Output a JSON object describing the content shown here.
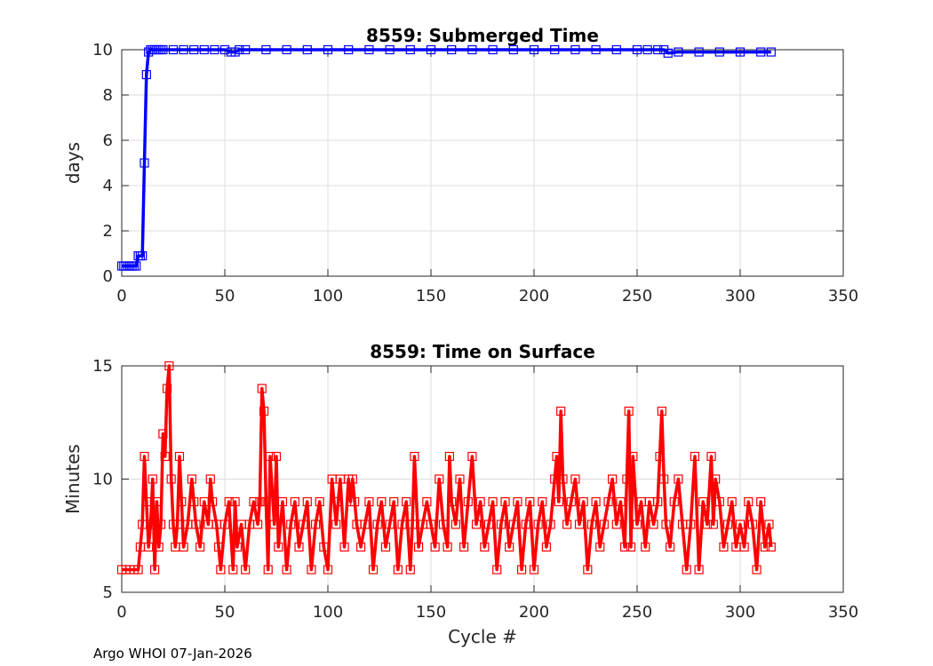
{
  "footer": "Argo WHOI 07-Jan-2026",
  "chart_data": [
    {
      "type": "line",
      "title": "8559: Submerged Time",
      "xlabel": "",
      "ylabel": "days",
      "xlim": [
        0,
        350
      ],
      "ylim": [
        0,
        10
      ],
      "xticks": [
        0,
        50,
        100,
        150,
        200,
        250,
        300,
        350
      ],
      "yticks": [
        0,
        2,
        4,
        6,
        8,
        10
      ],
      "grid": true,
      "marker": "square",
      "color": "#0000ff",
      "series": [
        {
          "name": "Submerged Time",
          "x": [
            0,
            1,
            2,
            3,
            4,
            5,
            6,
            7,
            8,
            9,
            10,
            11,
            12,
            13,
            14,
            15,
            16,
            17,
            18,
            19,
            20,
            25,
            30,
            35,
            40,
            45,
            50,
            53,
            55,
            57,
            60,
            70,
            80,
            90,
            100,
            110,
            120,
            130,
            140,
            150,
            160,
            170,
            180,
            190,
            200,
            210,
            220,
            230,
            240,
            250,
            255,
            260,
            263,
            265,
            270,
            280,
            290,
            300,
            310,
            315
          ],
          "y": [
            0.45,
            0.45,
            0.45,
            0.45,
            0.45,
            0.45,
            0.45,
            0.45,
            0.9,
            0.9,
            0.9,
            5.0,
            8.9,
            9.9,
            10,
            10,
            10,
            10,
            10,
            10,
            10,
            10,
            10,
            10,
            10,
            10,
            10,
            9.9,
            9.9,
            10,
            10,
            10,
            10,
            10,
            10,
            10,
            10,
            10,
            10,
            10,
            10,
            10,
            10,
            10,
            10,
            10,
            10,
            10,
            10,
            10,
            10,
            10,
            10,
            9.85,
            9.9,
            9.9,
            9.9,
            9.9,
            9.9,
            9.9
          ]
        }
      ]
    },
    {
      "type": "line",
      "title": "8559: Time on Surface",
      "xlabel": "Cycle #",
      "ylabel": "Minutes",
      "xlim": [
        0,
        350
      ],
      "ylim": [
        5,
        15
      ],
      "xticks": [
        0,
        50,
        100,
        150,
        200,
        250,
        300,
        350
      ],
      "yticks": [
        5,
        10,
        15
      ],
      "grid": true,
      "marker": "square",
      "color": "#ff0000",
      "series": [
        {
          "name": "Time on Surface",
          "x": [
            0,
            2,
            4,
            6,
            8,
            9,
            10,
            11,
            12,
            13,
            14,
            15,
            16,
            17,
            18,
            19,
            20,
            21,
            22,
            23,
            24,
            25,
            26,
            27,
            28,
            29,
            30,
            32,
            34,
            35,
            36,
            38,
            40,
            42,
            43,
            44,
            46,
            47,
            48,
            50,
            52,
            54,
            55,
            56,
            58,
            60,
            62,
            64,
            66,
            67,
            68,
            69,
            70,
            71,
            72,
            74,
            75,
            76,
            78,
            80,
            82,
            84,
            86,
            88,
            90,
            92,
            94,
            96,
            98,
            100,
            102,
            104,
            105,
            106,
            108,
            110,
            111,
            112,
            113,
            114,
            116,
            118,
            120,
            122,
            124,
            126,
            128,
            130,
            132,
            134,
            136,
            138,
            140,
            141,
            142,
            144,
            146,
            148,
            150,
            152,
            154,
            156,
            158,
            159,
            160,
            162,
            164,
            166,
            168,
            170,
            172,
            174,
            176,
            178,
            180,
            182,
            184,
            186,
            188,
            190,
            192,
            194,
            196,
            198,
            200,
            202,
            204,
            206,
            208,
            210,
            211,
            212,
            213,
            214,
            216,
            218,
            220,
            222,
            224,
            226,
            228,
            230,
            232,
            234,
            236,
            238,
            240,
            242,
            244,
            245,
            246,
            247,
            248,
            250,
            252,
            254,
            256,
            258,
            260,
            261,
            262,
            263,
            264,
            266,
            268,
            270,
            272,
            274,
            276,
            278,
            280,
            282,
            284,
            286,
            287,
            288,
            290,
            292,
            294,
            296,
            298,
            300,
            302,
            304,
            306,
            308,
            310,
            312,
            314,
            315
          ],
          "y": [
            6,
            6,
            6,
            6,
            6,
            7,
            8,
            11,
            9,
            7,
            8,
            10,
            6,
            9,
            7,
            8,
            12,
            11,
            14,
            15,
            10,
            8,
            7,
            8,
            11,
            9,
            7,
            8,
            10,
            9,
            8,
            7,
            9,
            8,
            10,
            9,
            8,
            7,
            6,
            8,
            9,
            6,
            9,
            7,
            8,
            6,
            8,
            9,
            8,
            9,
            14,
            13,
            9,
            6,
            11,
            8,
            11,
            7,
            9,
            6,
            8,
            9,
            7,
            8,
            9,
            6,
            8,
            9,
            7,
            6,
            10,
            8,
            9,
            10,
            7,
            10,
            9,
            10,
            9,
            8,
            7,
            8,
            9,
            6,
            8,
            9,
            7,
            8,
            9,
            6,
            8,
            9,
            6,
            8,
            11,
            7,
            8,
            9,
            8,
            7,
            10,
            8,
            7,
            11,
            9,
            8,
            10,
            7,
            9,
            11,
            8,
            9,
            7,
            8,
            9,
            6,
            8,
            9,
            7,
            8,
            9,
            6,
            8,
            9,
            6,
            8,
            9,
            7,
            8,
            10,
            11,
            9,
            13,
            10,
            8,
            9,
            10,
            8,
            9,
            6,
            8,
            9,
            7,
            8,
            9,
            10,
            8,
            9,
            7,
            10,
            13,
            7,
            11,
            8,
            9,
            7,
            9,
            8,
            9,
            11,
            13,
            10,
            8,
            7,
            9,
            10,
            8,
            6,
            8,
            11,
            6,
            9,
            8,
            11,
            8,
            10,
            9,
            7,
            8,
            9,
            7,
            8,
            7,
            9,
            8,
            6,
            9,
            7,
            8,
            7
          ]
        }
      ]
    }
  ]
}
